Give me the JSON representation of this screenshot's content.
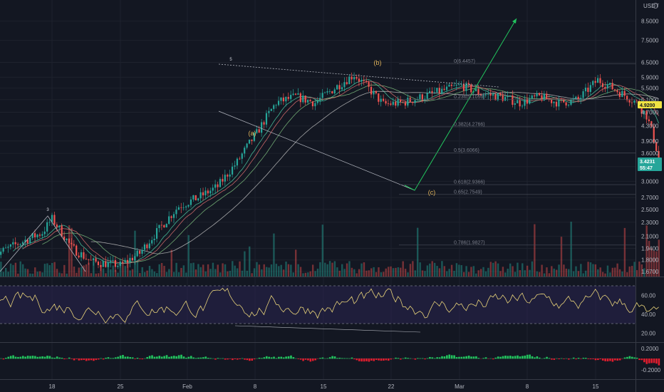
{
  "chart_data": {
    "type": "candlestick",
    "quote_currency": "USDT",
    "price_axis": {
      "scale": "log",
      "ticks": [
        "8.5000",
        "7.5000",
        "6.5000",
        "5.9000",
        "5.5000",
        "5.1000",
        "4.7000",
        "4.3000",
        "3.9000",
        "3.6000",
        "3.3000",
        "3.0000",
        "2.7000",
        "2.5000",
        "2.3000",
        "2.1000",
        "1.9400",
        "1.8000",
        "1.6700"
      ],
      "last_price_label": "4.9200",
      "current_price_label": "3.4231",
      "countdown_label": "55:47"
    },
    "time_axis": {
      "ticks": [
        "18",
        "25",
        "Feb",
        "8",
        "15",
        "22",
        "Mar",
        "8",
        "15"
      ]
    },
    "fib_levels": [
      {
        "label": "0(6.4457)",
        "price": 6.4457
      },
      {
        "label": "0.236(5.1056)",
        "price": 5.1056
      },
      {
        "label": "0.382(4.2766)",
        "price": 4.2766
      },
      {
        "label": "0.5(3.6066)",
        "price": 3.6066
      },
      {
        "label": "0.618(2.9366)",
        "price": 2.9366
      },
      {
        "label": "0.65(2.7549)",
        "price": 2.7549
      },
      {
        "label": "0.786(1.9827)",
        "price": 1.9827
      }
    ],
    "wave_labels": [
      "3",
      "5",
      "(a)",
      "(b)",
      "(c)"
    ],
    "rsi": {
      "ticks": [
        "60.00",
        "40.00",
        "20.00"
      ],
      "upper_band": 70,
      "lower_band": 30
    },
    "momentum": {
      "ticks": [
        "0.2000",
        "-0.2000"
      ]
    },
    "colors": {
      "up": "#26a69a",
      "down": "#ef5350",
      "forecast": "#22c55e",
      "last_price_bg": "#f0e442",
      "current_price_bg": "#26a69a",
      "rsi_line": "#e8d37a",
      "band_fill": "#2a2550"
    }
  }
}
